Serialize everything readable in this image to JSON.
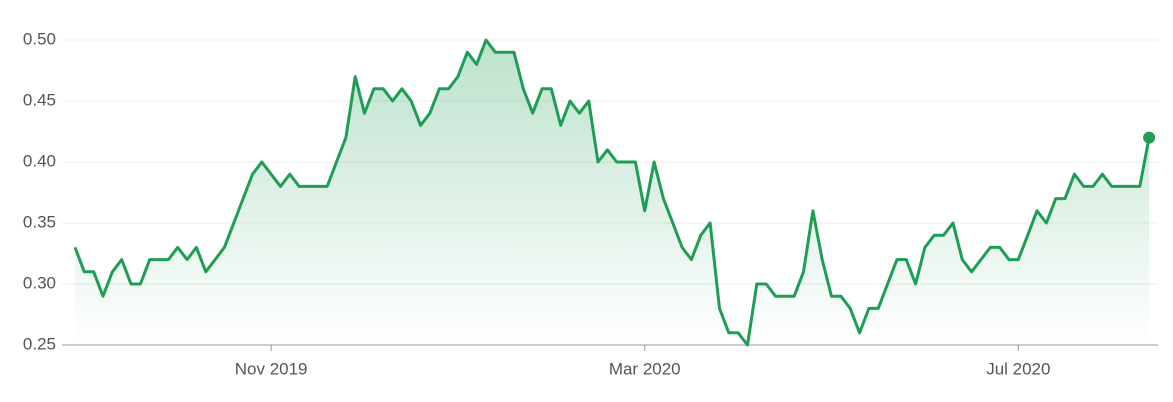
{
  "chart_data": {
    "type": "line",
    "color": "#1f9d55",
    "grid": true,
    "categories": [
      null,
      null,
      null,
      null,
      null,
      null,
      null,
      null,
      null,
      null,
      null,
      null,
      null,
      null,
      null,
      null,
      null,
      null,
      null,
      null,
      null,
      "Nov 2019",
      null,
      null,
      null,
      null,
      null,
      null,
      null,
      null,
      null,
      null,
      null,
      null,
      null,
      null,
      null,
      null,
      null,
      null,
      null,
      null,
      null,
      null,
      null,
      null,
      null,
      null,
      null,
      null,
      null,
      null,
      null,
      null,
      null,
      null,
      null,
      null,
      null,
      null,
      null,
      "Mar 2020",
      null,
      null,
      null,
      null,
      null,
      null,
      null,
      null,
      null,
      null,
      null,
      null,
      null,
      null,
      null,
      null,
      null,
      null,
      null,
      null,
      null,
      null,
      null,
      null,
      null,
      null,
      null,
      null,
      null,
      null,
      null,
      null,
      null,
      null,
      null,
      null,
      null,
      null,
      null,
      "Jul 2020",
      null,
      null,
      null,
      null,
      null,
      null,
      null,
      null,
      null,
      null,
      null,
      null,
      null,
      null
    ],
    "values": [
      0.33,
      0.31,
      0.31,
      0.29,
      0.31,
      0.32,
      0.3,
      0.3,
      0.32,
      0.32,
      0.32,
      0.33,
      0.32,
      0.33,
      0.31,
      0.32,
      0.33,
      0.35,
      0.37,
      0.39,
      0.4,
      0.39,
      0.38,
      0.39,
      0.38,
      0.38,
      0.38,
      0.38,
      0.4,
      0.42,
      0.47,
      0.44,
      0.46,
      0.46,
      0.45,
      0.46,
      0.45,
      0.43,
      0.44,
      0.46,
      0.46,
      0.47,
      0.49,
      0.48,
      0.5,
      0.49,
      0.49,
      0.49,
      0.46,
      0.44,
      0.46,
      0.46,
      0.43,
      0.45,
      0.44,
      0.45,
      0.4,
      0.41,
      0.4,
      0.4,
      0.4,
      0.36,
      0.4,
      0.37,
      0.35,
      0.33,
      0.32,
      0.34,
      0.35,
      0.28,
      0.26,
      0.26,
      0.25,
      0.3,
      0.3,
      0.29,
      0.29,
      0.29,
      0.31,
      0.36,
      0.32,
      0.29,
      0.29,
      0.28,
      0.26,
      0.28,
      0.28,
      0.3,
      0.32,
      0.32,
      0.3,
      0.33,
      0.34,
      0.34,
      0.35,
      0.32,
      0.31,
      0.32,
      0.33,
      0.33,
      0.32,
      0.32,
      0.34,
      0.36,
      0.35,
      0.37,
      0.37,
      0.39,
      0.38,
      0.38,
      0.39,
      0.38,
      0.38,
      0.38,
      0.38,
      0.42
    ],
    "ylim": [
      0.25,
      0.5
    ],
    "yticks": [
      {
        "value": 0.25,
        "label": "0.25"
      },
      {
        "value": 0.3,
        "label": "0.30"
      },
      {
        "value": 0.35,
        "label": "0.35"
      },
      {
        "value": 0.4,
        "label": "0.40"
      },
      {
        "value": 0.45,
        "label": "0.45"
      },
      {
        "value": 0.5,
        "label": "0.50"
      }
    ]
  }
}
